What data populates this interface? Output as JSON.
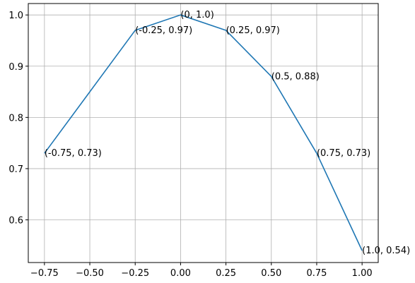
{
  "chart_data": {
    "type": "line",
    "title": "",
    "xlabel": "",
    "ylabel": "",
    "x": [
      -0.75,
      -0.25,
      0,
      0.25,
      0.5,
      0.75,
      1.0
    ],
    "series": [
      {
        "values": [
          0.73,
          0.97,
          1.0,
          0.97,
          0.88,
          0.73,
          0.54
        ],
        "color": "#1f77b4"
      }
    ],
    "annotations": [
      "(-0.75, 0.73)",
      "(-0.25, 0.97)",
      "(0, 1.0)",
      "(0.25, 0.97)",
      "(0.5, 0.88)",
      "(0.75, 0.73)",
      "(1.0, 0.54)"
    ],
    "xlim": [
      -0.839,
      1.089
    ],
    "ylim": [
      0.5167,
      1.0223
    ],
    "xticks": [
      -0.75,
      -0.5,
      -0.25,
      0,
      0.25,
      0.5,
      0.75,
      1.0
    ],
    "xtick_labels": [
      "−0.75",
      "−0.50",
      "−0.25",
      "0.00",
      "0.25",
      "0.50",
      "0.75",
      "1.00"
    ],
    "yticks": [
      0.6,
      0.7,
      0.8,
      0.9,
      1.0
    ],
    "ytick_labels": [
      "0.6",
      "0.7",
      "0.8",
      "0.9",
      "1.0"
    ],
    "grid": true,
    "legend": "none"
  }
}
